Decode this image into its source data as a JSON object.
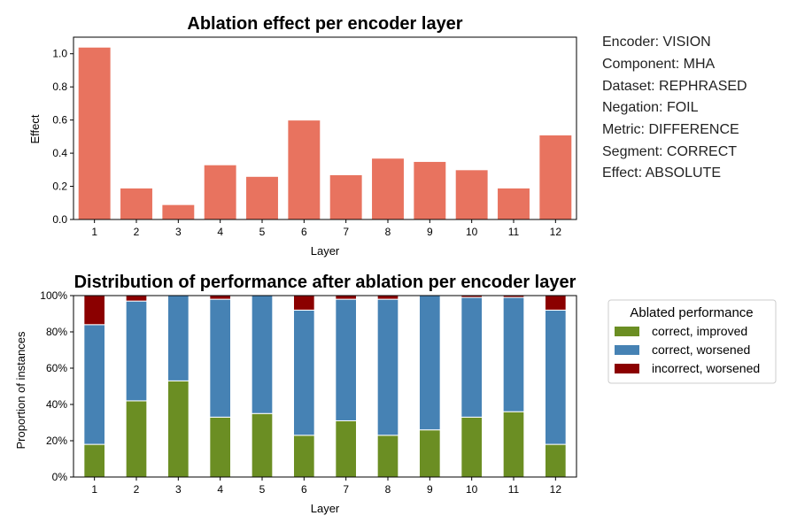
{
  "chart_data": [
    {
      "type": "bar",
      "title": "Ablation effect per encoder layer",
      "xlabel": "Layer",
      "ylabel": "Effect",
      "categories": [
        "1",
        "2",
        "3",
        "4",
        "5",
        "6",
        "7",
        "8",
        "9",
        "10",
        "11",
        "12"
      ],
      "values": [
        1.04,
        0.19,
        0.09,
        0.33,
        0.26,
        0.6,
        0.27,
        0.37,
        0.35,
        0.3,
        0.19,
        0.51
      ],
      "ylim": [
        0,
        1.1
      ],
      "yticks": [
        0.0,
        0.2,
        0.4,
        0.6,
        0.8,
        1.0
      ],
      "ytick_labels": [
        "0.0",
        "0.2",
        "0.4",
        "0.6",
        "0.8",
        "1.0"
      ],
      "grid": false,
      "color": "#E8735F"
    },
    {
      "type": "bar",
      "stacked": true,
      "title": "Distribution of performance after ablation per encoder layer",
      "xlabel": "Layer",
      "ylabel": "Proportion of instances",
      "categories": [
        "1",
        "2",
        "3",
        "4",
        "5",
        "6",
        "7",
        "8",
        "9",
        "10",
        "11",
        "12"
      ],
      "ylim": [
        0,
        1.0
      ],
      "yticks": [
        0,
        0.2,
        0.4,
        0.6,
        0.8,
        1.0
      ],
      "ytick_labels": [
        "0%",
        "20%",
        "40%",
        "60%",
        "80%",
        "100%"
      ],
      "legend_title": "Ablated performance",
      "legend_position": "outside-right",
      "grid": false,
      "series": [
        {
          "name": "correct, improved",
          "color": "#6B8E23",
          "values": [
            0.18,
            0.42,
            0.53,
            0.33,
            0.35,
            0.23,
            0.31,
            0.23,
            0.26,
            0.33,
            0.36,
            0.18
          ]
        },
        {
          "name": "correct, worsened",
          "color": "#4682B4",
          "values": [
            0.66,
            0.55,
            0.47,
            0.65,
            0.65,
            0.69,
            0.67,
            0.75,
            0.74,
            0.66,
            0.63,
            0.74
          ]
        },
        {
          "name": "incorrect, worsened",
          "color": "#8B0000",
          "values": [
            0.16,
            0.03,
            0.0,
            0.02,
            0.0,
            0.08,
            0.02,
            0.02,
            0.0,
            0.01,
            0.01,
            0.08
          ]
        }
      ]
    }
  ],
  "metadata_panel": {
    "lines": [
      "Encoder: VISION",
      "Component: MHA",
      "Dataset: REPHRASED",
      "Negation: FOIL",
      "Metric: DIFFERENCE",
      "Segment: CORRECT",
      "Effect: ABSOLUTE"
    ]
  }
}
